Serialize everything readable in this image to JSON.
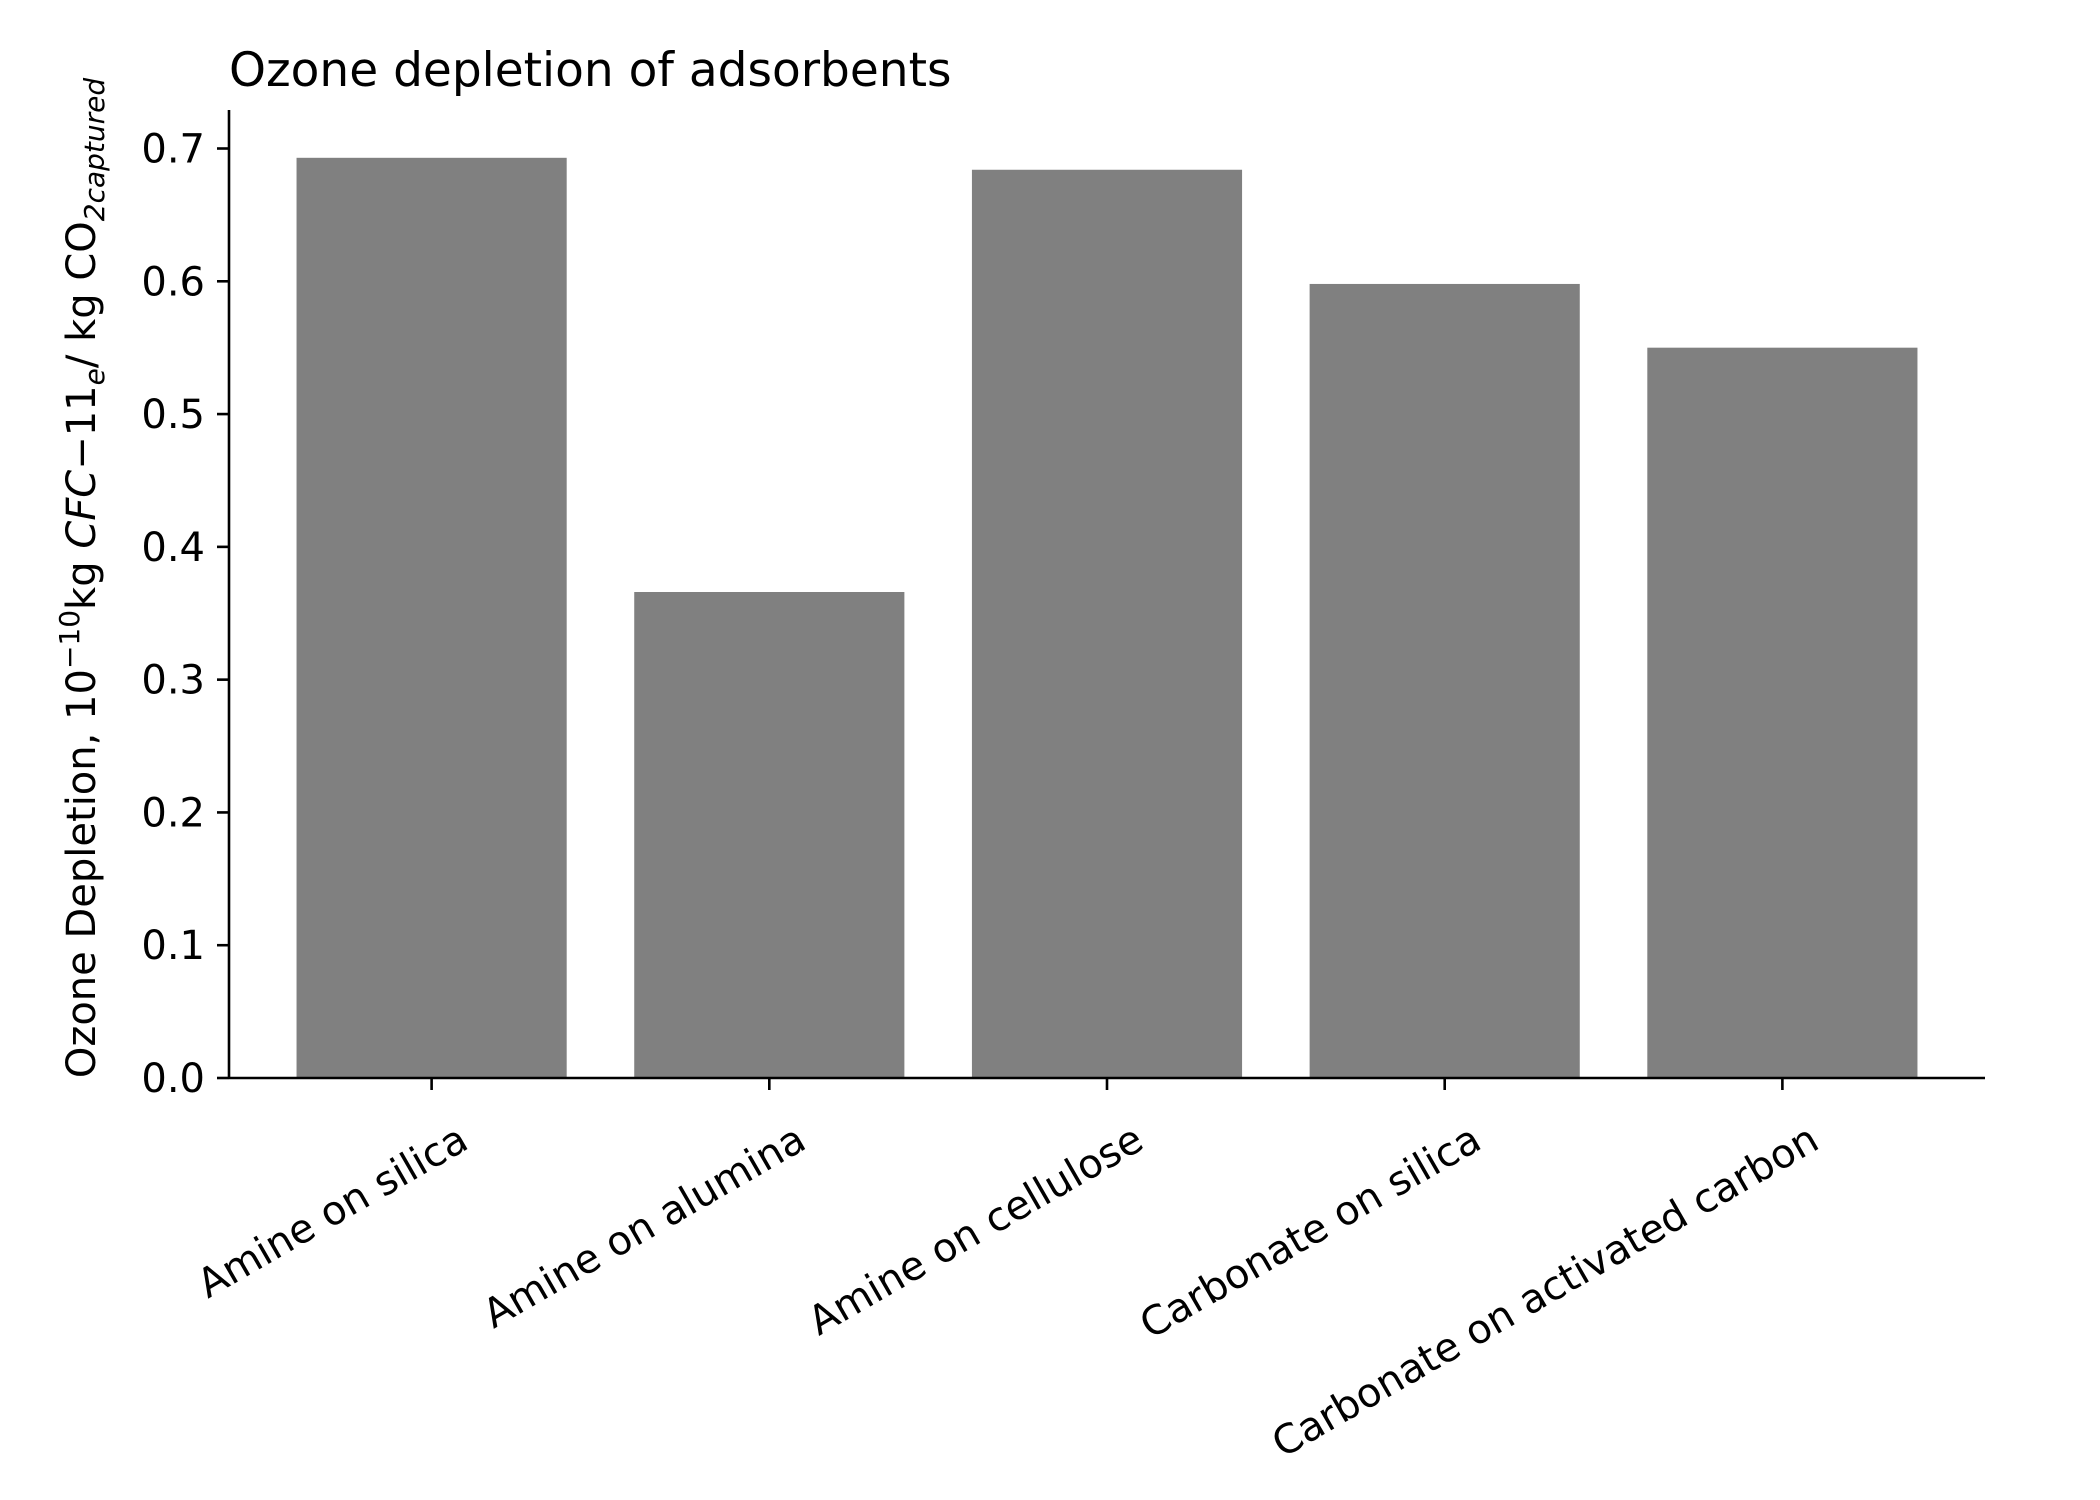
{
  "chart_data": {
    "type": "bar",
    "title": "Ozone depletion of adsorbents",
    "ylabel": {
      "base": "Ozone Depletion, 10",
      "exp": "−10",
      "kg": "kg ",
      "cfc": "CFC",
      "dash11": "−11",
      "sub_e": "e",
      "per": "/ kg CO",
      "sub_captured": "2captured"
    },
    "xlabel": "",
    "categories": [
      "Amine on silica",
      "Amine on alumina",
      "Amine on cellulose",
      "Carbonate on silica",
      "Carbonate on activated carbon"
    ],
    "values": [
      0.693,
      0.366,
      0.684,
      0.598,
      0.55
    ],
    "ylim": [
      0,
      0.729
    ],
    "yticks": [
      0.0,
      0.1,
      0.2,
      0.3,
      0.4,
      0.5,
      0.6,
      0.7
    ],
    "ytick_labels": [
      "0.0",
      "0.1",
      "0.2",
      "0.3",
      "0.4",
      "0.5",
      "0.6",
      "0.7"
    ],
    "bar_color": "#808080",
    "grid": false,
    "legend": "none"
  }
}
